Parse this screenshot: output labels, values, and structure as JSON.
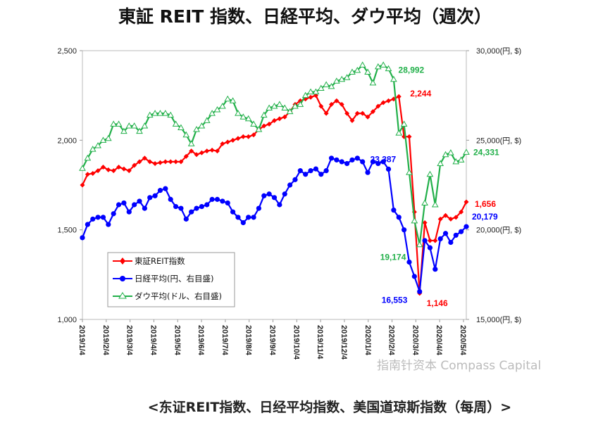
{
  "chart_data": {
    "type": "line",
    "title": "東証 REIT 指数、日経平均、ダウ平均（週次）",
    "caption": "<东证REIT指数、日经平均指数、美国道琼斯指数（每周）>",
    "watermark": "指南针资本 Compass Capital",
    "x_tick_labels": [
      "2019/1/4",
      "2019/2/4",
      "2019/3/4",
      "2019/4/4",
      "2019/5/4",
      "2019/6/4",
      "2019/7/4",
      "2019/8/4",
      "2019/9/4",
      "2019/10/4",
      "2019/11/4",
      "2019/12/4",
      "2020/1/4",
      "2020/2/4",
      "2020/3/4",
      "2020/4/4",
      "2020/5/4"
    ],
    "left_axis": {
      "ylim": [
        1000,
        2500
      ],
      "ticks": [
        "1,000",
        "1,500",
        "2,000",
        "2,500"
      ]
    },
    "right_axis": {
      "ylim": [
        15000,
        30000
      ],
      "ticks": [
        "15,000(円, $)",
        "20,000(円, $)",
        "25,000(円, $)",
        "30,000(円, $)"
      ]
    },
    "series": [
      {
        "name": "東証REIT指数",
        "axis": "left",
        "color": "#ff0000",
        "marker": "diamond",
        "values": [
          1750,
          1810,
          1815,
          1830,
          1850,
          1835,
          1830,
          1850,
          1840,
          1830,
          1860,
          1880,
          1900,
          1880,
          1870,
          1875,
          1880,
          1880,
          1880,
          1880,
          1910,
          1940,
          1920,
          1930,
          1940,
          1945,
          1940,
          1980,
          1990,
          2000,
          2010,
          2020,
          2020,
          2030,
          2060,
          2080,
          2090,
          2110,
          2120,
          2130,
          2160,
          2200,
          2220,
          2230,
          2240,
          2250,
          2190,
          2150,
          2200,
          2220,
          2200,
          2150,
          2110,
          2150,
          2150,
          2130,
          2160,
          2190,
          2210,
          2220,
          2230,
          2244,
          2020,
          2020,
          1600,
          1146,
          1540,
          1440,
          1440,
          1560,
          1580,
          1560,
          1570,
          1600,
          1656
        ]
      },
      {
        "name": "日経平均(円、右目盛)",
        "axis": "right",
        "color": "#0000ff",
        "marker": "circle",
        "values": [
          19561,
          20300,
          20600,
          20700,
          20700,
          20300,
          20900,
          21400,
          21500,
          21000,
          21400,
          21600,
          21200,
          21800,
          21900,
          22200,
          22300,
          21700,
          21300,
          21200,
          20600,
          21000,
          21200,
          21300,
          21400,
          21700,
          21700,
          21600,
          21500,
          21000,
          20700,
          20400,
          20700,
          20700,
          21200,
          21900,
          22000,
          21800,
          21400,
          22000,
          22500,
          22800,
          23300,
          23100,
          23300,
          23400,
          23100,
          23300,
          24000,
          23900,
          23800,
          23700,
          23900,
          24000,
          23800,
          23200,
          23800,
          23700,
          23800,
          23387,
          21100,
          20700,
          20000,
          18200,
          17400,
          16553,
          19400,
          19000,
          17800,
          19500,
          19800,
          19300,
          19700,
          19900,
          20179
        ]
      },
      {
        "name": "ダウ平均(ドル、右目盛)",
        "axis": "right",
        "color": "#22b04a",
        "marker": "triangle",
        "values": [
          23433,
          24000,
          24500,
          24700,
          25000,
          25100,
          25900,
          25900,
          25500,
          25800,
          25800,
          25500,
          25800,
          26400,
          26500,
          26500,
          26500,
          26400,
          25900,
          25700,
          25300,
          24800,
          25600,
          25800,
          26100,
          26500,
          26700,
          26900,
          27300,
          27200,
          26500,
          26300,
          26200,
          25900,
          25600,
          26400,
          26800,
          26900,
          27000,
          26800,
          26600,
          26900,
          27000,
          27500,
          27700,
          27700,
          27900,
          28100,
          28000,
          28300,
          28400,
          28500,
          28800,
          28900,
          29200,
          28800,
          28200,
          29100,
          29200,
          28992,
          28400,
          25400,
          25900,
          23200,
          20500,
          19174,
          21500,
          23100,
          21400,
          23700,
          24200,
          24300,
          23800,
          23900,
          24331
        ]
      }
    ],
    "annotations": [
      {
        "series": 2,
        "index": 59,
        "text": "28,992"
      },
      {
        "series": 0,
        "index": 61,
        "text": "2,244"
      },
      {
        "series": 1,
        "index": 59,
        "text": "23,387"
      },
      {
        "series": 0,
        "index": 74,
        "text": "1,656"
      },
      {
        "series": 1,
        "index": 74,
        "text": "20,179"
      },
      {
        "series": 2,
        "index": 65,
        "text": "19,174"
      },
      {
        "series": 1,
        "index": 65,
        "text": "16,553"
      },
      {
        "series": 0,
        "index": 65,
        "text": "1,146"
      },
      {
        "series": 2,
        "index": 74,
        "text": "24,331"
      }
    ],
    "legend": "inside-bottom-left"
  }
}
